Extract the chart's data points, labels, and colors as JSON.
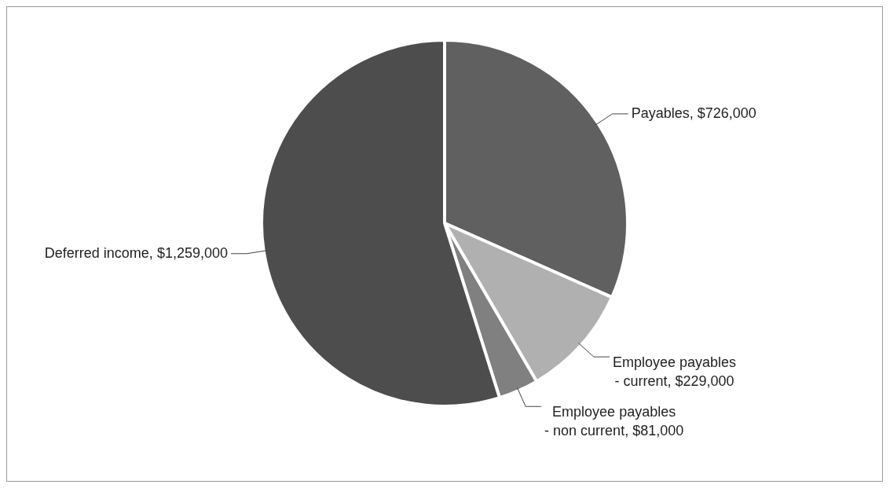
{
  "chart_data": {
    "type": "pie",
    "categories": [
      "Payables",
      "Employee payables - current",
      "Employee payables - non current",
      "Deferred income"
    ],
    "values": [
      726000,
      229000,
      81000,
      1259000
    ],
    "value_labels": [
      "$726,000",
      "$229,000",
      "$81,000",
      "$1,259,000"
    ],
    "colors": [
      "#606060",
      "#b0b0b0",
      "#808080",
      "#4d4d4d"
    ],
    "legend": false
  }
}
